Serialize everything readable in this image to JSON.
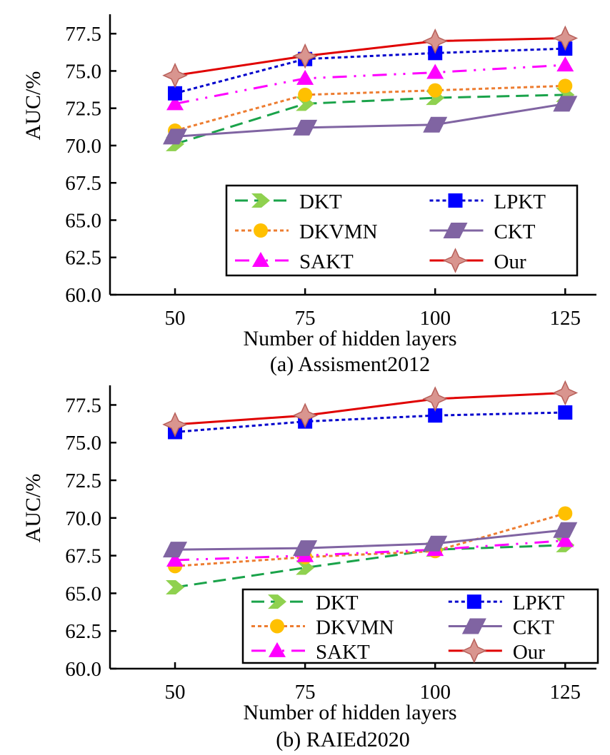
{
  "chart_data": [
    {
      "type": "line",
      "title": "(a) Assisment2012",
      "xlabel": "Number of hidden layers",
      "ylabel": "AUC/%",
      "x": [
        50,
        75,
        100,
        125
      ],
      "xticks": [
        "50",
        "75",
        "100",
        "125"
      ],
      "yticks": [
        "60.0",
        "62.5",
        "65.0",
        "67.5",
        "70.0",
        "72.5",
        "75.0",
        "77.5"
      ],
      "ytick_values": [
        60.0,
        62.5,
        65.0,
        67.5,
        70.0,
        72.5,
        75.0,
        77.5
      ],
      "xlim": [
        37.5,
        131
      ],
      "ylim": [
        60.0,
        78.8
      ],
      "grid": false,
      "legend_position": "lower-right",
      "series": [
        {
          "name": "DKT",
          "values": [
            70.1,
            72.8,
            73.2,
            73.4
          ]
        },
        {
          "name": "DKVMN",
          "values": [
            71.0,
            73.4,
            73.7,
            74.0
          ]
        },
        {
          "name": "SAKT",
          "values": [
            72.8,
            74.5,
            74.9,
            75.4
          ]
        },
        {
          "name": "LPKT",
          "values": [
            73.5,
            75.8,
            76.2,
            76.5
          ]
        },
        {
          "name": "CKT",
          "values": [
            70.6,
            71.2,
            71.4,
            72.8
          ]
        },
        {
          "name": "Our",
          "values": [
            74.7,
            76.0,
            77.0,
            77.2
          ]
        }
      ]
    },
    {
      "type": "line",
      "title": "(b) RAIEd2020",
      "xlabel": "Number of hidden layers",
      "ylabel": "AUC/%",
      "x": [
        50,
        75,
        100,
        125
      ],
      "xticks": [
        "50",
        "75",
        "100",
        "125"
      ],
      "yticks": [
        "60.0",
        "62.5",
        "65.0",
        "67.5",
        "70.0",
        "72.5",
        "75.0",
        "77.5"
      ],
      "ytick_values": [
        60.0,
        62.5,
        65.0,
        67.5,
        70.0,
        72.5,
        75.0,
        77.5
      ],
      "xlim": [
        37.5,
        131
      ],
      "ylim": [
        60.0,
        78.8
      ],
      "grid": false,
      "legend_position": "lower-right",
      "series": [
        {
          "name": "DKT",
          "values": [
            65.4,
            66.7,
            67.9,
            68.2
          ]
        },
        {
          "name": "DKVMN",
          "values": [
            66.8,
            67.4,
            67.8,
            70.3
          ]
        },
        {
          "name": "SAKT",
          "values": [
            67.2,
            67.5,
            67.9,
            68.5
          ]
        },
        {
          "name": "LPKT",
          "values": [
            75.7,
            76.4,
            76.8,
            77.0
          ]
        },
        {
          "name": "CKT",
          "values": [
            67.9,
            68.0,
            68.3,
            69.2
          ]
        },
        {
          "name": "Our",
          "values": [
            76.2,
            76.8,
            77.9,
            78.3
          ]
        }
      ]
    }
  ],
  "series_styles": {
    "DKT": {
      "line_color": "#1aa34a",
      "marker_color": "#8fd14f",
      "marker": "chevron",
      "dash": "dashed"
    },
    "DKVMN": {
      "line_color": "#ed7d31",
      "marker_color": "#ffc000",
      "marker": "circle",
      "dash": "dotted"
    },
    "SAKT": {
      "line_color": "#ff00ff",
      "marker_color": "#ff00ff",
      "marker": "triangle",
      "dash": "dash-dot-dot"
    },
    "LPKT": {
      "line_color": "#0000cc",
      "marker_color": "#0000ff",
      "marker": "square",
      "dash": "dotted"
    },
    "CKT": {
      "line_color": "#8064a2",
      "marker_color": "#8064a2",
      "marker": "parallelogram",
      "dash": "solid"
    },
    "Our": {
      "line_color": "#e00000",
      "marker_color": "#d9958f",
      "marker": "star4",
      "dash": "solid"
    }
  },
  "legend_order": [
    "DKT",
    "DKVMN",
    "SAKT",
    "LPKT",
    "CKT",
    "Our"
  ]
}
